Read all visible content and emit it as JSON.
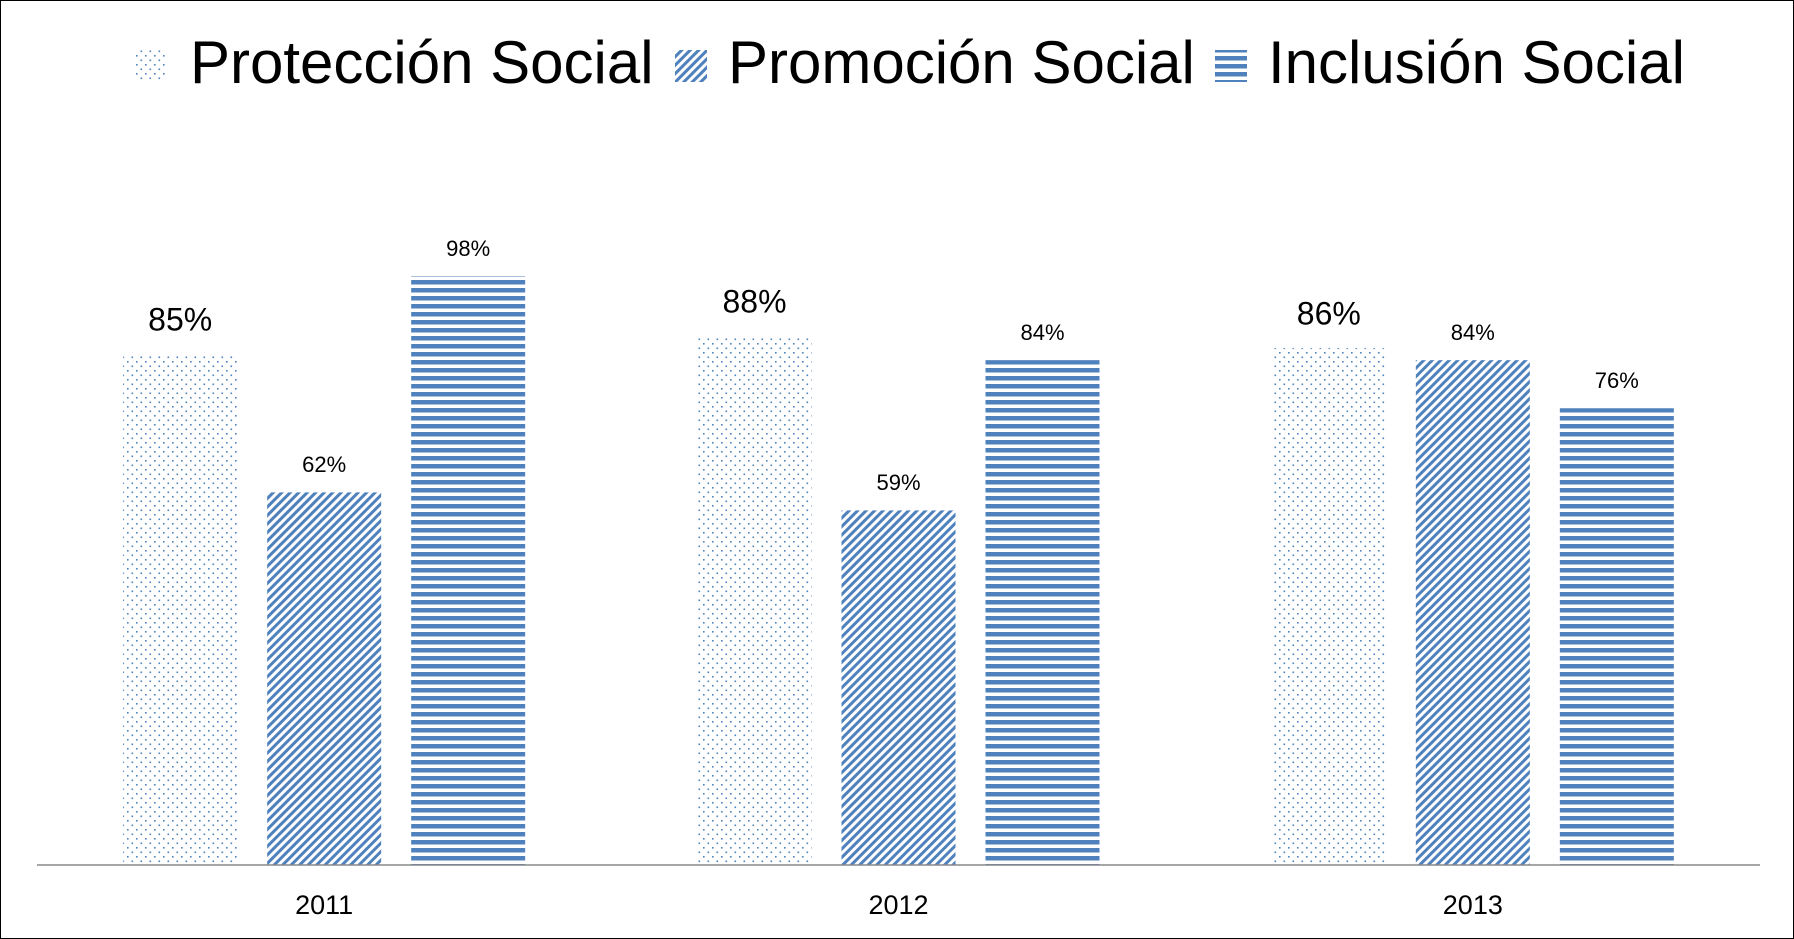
{
  "chart_data": {
    "type": "bar",
    "categories": [
      "2011",
      "2012",
      "2013"
    ],
    "series": [
      {
        "name": "Protección Social",
        "color": "#4f81bd",
        "pattern": "dots",
        "values": [
          85,
          88,
          86
        ],
        "value_labels": [
          "85%",
          "88%",
          "86%"
        ]
      },
      {
        "name": "Promoción Social",
        "color": "#4f81bd",
        "pattern": "diagonal",
        "values": [
          62,
          59,
          84
        ],
        "value_labels": [
          "62%",
          "59%",
          "84%"
        ]
      },
      {
        "name": "Inclusión Social",
        "color": "#4f81bd",
        "pattern": "horizontal",
        "values": [
          98,
          84,
          76
        ],
        "value_labels": [
          "98%",
          "84%",
          "76%"
        ]
      }
    ],
    "ylim": [
      0,
      100
    ],
    "legend": "top"
  }
}
